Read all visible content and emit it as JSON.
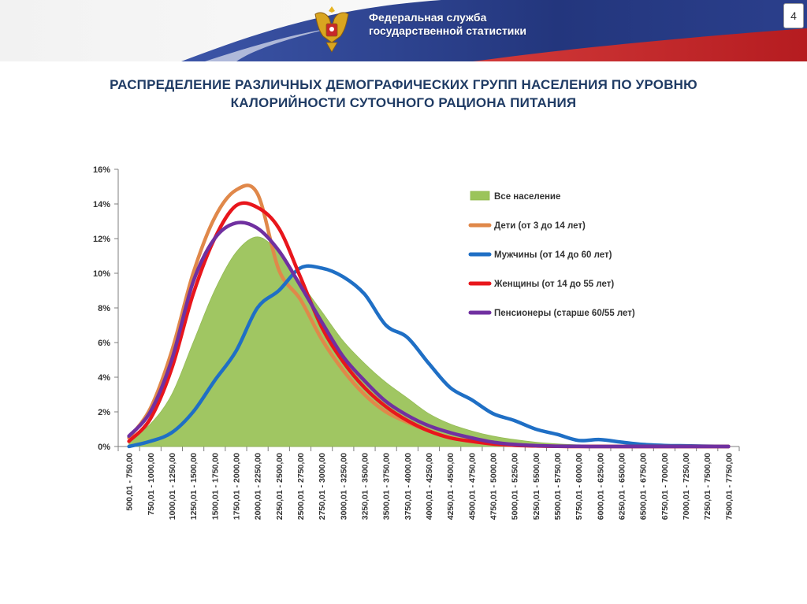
{
  "header": {
    "agency_line1": "Федеральная служба",
    "agency_line2": "государственной статистики",
    "page_number": "4"
  },
  "slide": {
    "title_line1": "РАСПРЕДЕЛЕНИЕ РАЗЛИЧНЫХ ДЕМОГРАФИЧЕСКИХ ГРУПП НАСЕЛЕНИЯ ПО УРОВНЮ",
    "title_line2": "КАЛОРИЙНОСТИ СУТОЧНОГО РАЦИОНА ПИТАНИЯ"
  },
  "colors": {
    "banner_blue": "#2b3f8c",
    "banner_red": "#c8282a",
    "title": "#1f3b64"
  },
  "chart_data": {
    "type": "line",
    "title": "",
    "xlabel": "",
    "ylabel": "",
    "ylim": [
      0,
      16
    ],
    "yticks": [
      "0%",
      "2%",
      "4%",
      "6%",
      "8%",
      "10%",
      "12%",
      "14%",
      "16%"
    ],
    "categories": [
      "500,01 - 750,00",
      "750,01 - 1000,00",
      "1000,01 - 1250,00",
      "1250,01 - 1500,00",
      "1500,01 - 1750,00",
      "1750,01 - 2000,00",
      "2000,01 - 2250,00",
      "2250,01 - 2500,00",
      "2500,01 - 2750,00",
      "2750,01 - 3000,00",
      "3000,01 - 3250,00",
      "3250,01 - 3500,00",
      "3500,01 - 3750,00",
      "3750,01 - 4000,00",
      "4000,01 - 4250,00",
      "4250,01 - 4500,00",
      "4500,01 - 4750,00",
      "4750,01 - 5000,00",
      "5000,01 - 5250,00",
      "5250,01 - 5500,00",
      "5500,01 - 5750,00",
      "5750,01 - 6000,00",
      "6000,01 - 6250,00",
      "6250,01 - 6500,00",
      "6500,01 - 6750,00",
      "6750,01 - 7000,00",
      "7000,01 - 7250,00",
      "7250,01 - 7500,00",
      "7500,01 - 7750,00"
    ],
    "series": [
      {
        "name": "Все население",
        "type": "area",
        "color": "#9bc45a",
        "values": [
          0.4,
          1.3,
          3.0,
          6.0,
          9.0,
          11.2,
          12.1,
          11.2,
          9.5,
          7.8,
          6.1,
          4.8,
          3.7,
          2.8,
          1.9,
          1.3,
          0.9,
          0.6,
          0.4,
          0.25,
          0.15,
          0.1,
          0.08,
          0.06,
          0.04,
          0.03,
          0.02,
          0.01,
          0.01
        ]
      },
      {
        "name": "Дети (от 3 до 14 лет)",
        "type": "line",
        "color": "#e0884a",
        "values": [
          0.5,
          2.2,
          5.5,
          10.0,
          13.2,
          14.8,
          14.6,
          10.2,
          8.5,
          6.2,
          4.4,
          3.0,
          2.0,
          1.4,
          0.9,
          0.5,
          0.3,
          0.15,
          0.08,
          0.04,
          0.02,
          0.01,
          0.01,
          0.0,
          0.0,
          0.0,
          0.0,
          0.0,
          0.0
        ]
      },
      {
        "name": "Мужчины (от 14 до 60 лет)",
        "type": "line",
        "color": "#1f6fc5",
        "values": [
          0.0,
          0.3,
          0.8,
          2.0,
          3.8,
          5.5,
          8.0,
          9.0,
          10.3,
          10.3,
          9.8,
          8.8,
          7.0,
          6.3,
          4.8,
          3.4,
          2.7,
          1.9,
          1.5,
          1.0,
          0.7,
          0.35,
          0.4,
          0.25,
          0.12,
          0.06,
          0.04,
          0.02,
          0.0
        ]
      },
      {
        "name": "Женщины (от 14 до 55 лет)",
        "type": "line",
        "color": "#e8161c",
        "values": [
          0.3,
          1.6,
          4.5,
          8.8,
          12.0,
          13.9,
          13.8,
          12.6,
          9.8,
          6.9,
          4.9,
          3.4,
          2.3,
          1.5,
          0.9,
          0.5,
          0.3,
          0.15,
          0.07,
          0.03,
          0.01,
          0.0,
          0.0,
          0.0,
          0.0,
          0.0,
          0.0,
          0.0,
          0.0
        ]
      },
      {
        "name": "Пенсионеры (старше 60/55 лет)",
        "type": "line",
        "color": "#7030a0",
        "values": [
          0.6,
          2.0,
          5.0,
          9.5,
          12.0,
          12.9,
          12.6,
          11.3,
          9.3,
          7.2,
          5.2,
          3.8,
          2.6,
          1.8,
          1.2,
          0.8,
          0.5,
          0.25,
          0.12,
          0.05,
          0.02,
          0.01,
          0.0,
          0.0,
          0.0,
          0.0,
          0.0,
          0.0,
          0.0
        ]
      }
    ],
    "legend_position": "right, inside plot",
    "grid": false
  }
}
